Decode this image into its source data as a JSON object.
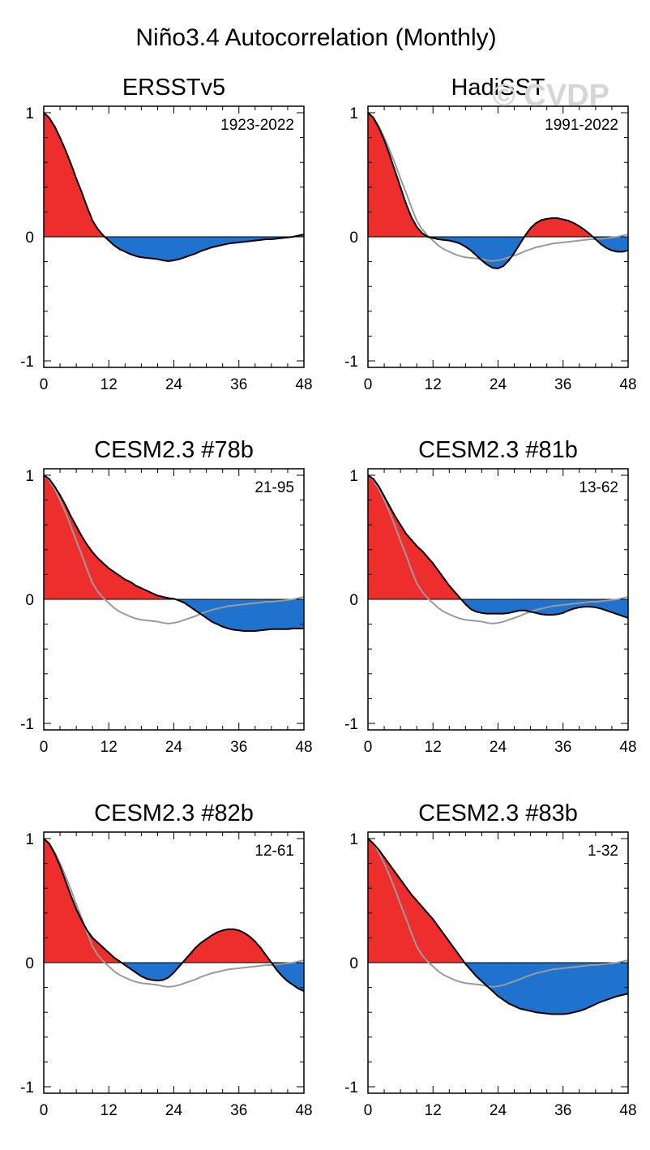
{
  "page_title": "Niño3.4 Autocorrelation (Monthly)",
  "watermark": "© CVDP",
  "colors": {
    "positive": "#ee2d2d",
    "negative": "#1f72cd",
    "line": "#000000",
    "reference": "#9a9a9a",
    "watermark": "#d6d6d6"
  },
  "chart_data": [
    {
      "type": "area",
      "title": "ERSSTv5",
      "period": "1923-2022",
      "xlim": [
        0,
        48
      ],
      "ylim": [
        -1,
        1
      ],
      "xticks": [
        0,
        12,
        24,
        36,
        48
      ],
      "yticks": [
        -1,
        0,
        1
      ],
      "x": [
        0,
        1,
        2,
        3,
        4,
        5,
        6,
        7,
        8,
        9,
        10,
        11,
        12,
        13,
        14,
        15,
        16,
        17,
        18,
        19,
        20,
        21,
        22,
        23,
        24,
        25,
        26,
        27,
        28,
        29,
        30,
        31,
        32,
        33,
        34,
        35,
        36,
        37,
        38,
        39,
        40,
        41,
        42,
        43,
        44,
        45,
        46,
        47,
        48
      ],
      "values": [
        1.0,
        0.96,
        0.89,
        0.8,
        0.7,
        0.59,
        0.47,
        0.36,
        0.24,
        0.13,
        0.06,
        0.01,
        -0.03,
        -0.07,
        -0.1,
        -0.12,
        -0.14,
        -0.155,
        -0.165,
        -0.17,
        -0.175,
        -0.18,
        -0.19,
        -0.195,
        -0.19,
        -0.18,
        -0.165,
        -0.15,
        -0.135,
        -0.115,
        -0.1,
        -0.085,
        -0.075,
        -0.065,
        -0.055,
        -0.05,
        -0.045,
        -0.04,
        -0.035,
        -0.03,
        -0.025,
        -0.02,
        -0.02,
        -0.015,
        -0.01,
        -0.005,
        0.0,
        0.01,
        0.02
      ],
      "reference": false
    },
    {
      "type": "area",
      "title": "HadiSST",
      "period": "1991-2022",
      "xlim": [
        0,
        48
      ],
      "ylim": [
        -1,
        1
      ],
      "xticks": [
        0,
        12,
        24,
        36,
        48
      ],
      "yticks": [
        -1,
        0,
        1
      ],
      "x": [
        0,
        1,
        2,
        3,
        4,
        5,
        6,
        7,
        8,
        9,
        10,
        11,
        12,
        13,
        14,
        15,
        16,
        17,
        18,
        19,
        20,
        21,
        22,
        23,
        24,
        25,
        26,
        27,
        28,
        29,
        30,
        31,
        32,
        33,
        34,
        35,
        36,
        37,
        38,
        39,
        40,
        41,
        42,
        43,
        44,
        45,
        46,
        47,
        48
      ],
      "values": [
        1.0,
        0.96,
        0.88,
        0.78,
        0.66,
        0.53,
        0.4,
        0.27,
        0.16,
        0.08,
        0.03,
        0.0,
        -0.01,
        -0.02,
        -0.025,
        -0.03,
        -0.04,
        -0.055,
        -0.08,
        -0.11,
        -0.15,
        -0.19,
        -0.225,
        -0.25,
        -0.255,
        -0.235,
        -0.19,
        -0.13,
        -0.06,
        0.01,
        0.07,
        0.11,
        0.135,
        0.145,
        0.15,
        0.15,
        0.14,
        0.13,
        0.11,
        0.085,
        0.055,
        0.02,
        -0.02,
        -0.06,
        -0.09,
        -0.11,
        -0.12,
        -0.12,
        -0.11
      ],
      "reference": true
    },
    {
      "type": "area",
      "title": "CESM2.3 #78b",
      "period": "21-95",
      "xlim": [
        0,
        48
      ],
      "ylim": [
        -1,
        1
      ],
      "xticks": [
        0,
        12,
        24,
        36,
        48
      ],
      "yticks": [
        -1,
        0,
        1
      ],
      "x": [
        0,
        1,
        2,
        3,
        4,
        5,
        6,
        7,
        8,
        9,
        10,
        11,
        12,
        13,
        14,
        15,
        16,
        17,
        18,
        19,
        20,
        21,
        22,
        23,
        24,
        25,
        26,
        27,
        28,
        29,
        30,
        31,
        32,
        33,
        34,
        35,
        36,
        37,
        38,
        39,
        40,
        41,
        42,
        43,
        44,
        45,
        46,
        47,
        48
      ],
      "values": [
        1.0,
        0.97,
        0.91,
        0.84,
        0.76,
        0.67,
        0.59,
        0.51,
        0.44,
        0.38,
        0.33,
        0.29,
        0.25,
        0.22,
        0.19,
        0.16,
        0.14,
        0.11,
        0.09,
        0.07,
        0.05,
        0.03,
        0.02,
        0.01,
        0.005,
        -0.01,
        -0.03,
        -0.06,
        -0.09,
        -0.12,
        -0.15,
        -0.18,
        -0.2,
        -0.22,
        -0.235,
        -0.245,
        -0.25,
        -0.255,
        -0.255,
        -0.255,
        -0.25,
        -0.245,
        -0.24,
        -0.24,
        -0.24,
        -0.24,
        -0.235,
        -0.235,
        -0.235
      ],
      "reference": true
    },
    {
      "type": "area",
      "title": "CESM2.3 #81b",
      "period": "13-62",
      "xlim": [
        0,
        48
      ],
      "ylim": [
        -1,
        1
      ],
      "xticks": [
        0,
        12,
        24,
        36,
        48
      ],
      "yticks": [
        -1,
        0,
        1
      ],
      "x": [
        0,
        1,
        2,
        3,
        4,
        5,
        6,
        7,
        8,
        9,
        10,
        11,
        12,
        13,
        14,
        15,
        16,
        17,
        18,
        19,
        20,
        21,
        22,
        23,
        24,
        25,
        26,
        27,
        28,
        29,
        30,
        31,
        32,
        33,
        34,
        35,
        36,
        37,
        38,
        39,
        40,
        41,
        42,
        43,
        44,
        45,
        46,
        47,
        48
      ],
      "values": [
        1.0,
        0.97,
        0.91,
        0.83,
        0.75,
        0.67,
        0.6,
        0.53,
        0.48,
        0.43,
        0.39,
        0.34,
        0.29,
        0.23,
        0.17,
        0.11,
        0.06,
        0.01,
        -0.04,
        -0.08,
        -0.1,
        -0.11,
        -0.115,
        -0.115,
        -0.115,
        -0.115,
        -0.11,
        -0.1,
        -0.09,
        -0.09,
        -0.1,
        -0.11,
        -0.12,
        -0.125,
        -0.125,
        -0.12,
        -0.11,
        -0.09,
        -0.075,
        -0.065,
        -0.06,
        -0.06,
        -0.065,
        -0.075,
        -0.09,
        -0.105,
        -0.12,
        -0.135,
        -0.15
      ],
      "reference": true
    },
    {
      "type": "area",
      "title": "CESM2.3 #82b",
      "period": "12-61",
      "xlim": [
        0,
        48
      ],
      "ylim": [
        -1,
        1
      ],
      "xticks": [
        0,
        12,
        24,
        36,
        48
      ],
      "yticks": [
        -1,
        0,
        1
      ],
      "x": [
        0,
        1,
        2,
        3,
        4,
        5,
        6,
        7,
        8,
        9,
        10,
        11,
        12,
        13,
        14,
        15,
        16,
        17,
        18,
        19,
        20,
        21,
        22,
        23,
        24,
        25,
        26,
        27,
        28,
        29,
        30,
        31,
        32,
        33,
        34,
        35,
        36,
        37,
        38,
        39,
        40,
        41,
        42,
        43,
        44,
        45,
        46,
        47,
        48
      ],
      "values": [
        1.0,
        0.96,
        0.88,
        0.78,
        0.66,
        0.54,
        0.43,
        0.34,
        0.26,
        0.2,
        0.16,
        0.12,
        0.08,
        0.04,
        0.01,
        -0.02,
        -0.05,
        -0.08,
        -0.11,
        -0.13,
        -0.14,
        -0.145,
        -0.14,
        -0.12,
        -0.08,
        -0.03,
        0.02,
        0.07,
        0.12,
        0.16,
        0.19,
        0.22,
        0.245,
        0.26,
        0.27,
        0.27,
        0.26,
        0.24,
        0.21,
        0.17,
        0.12,
        0.06,
        0.0,
        -0.06,
        -0.11,
        -0.15,
        -0.18,
        -0.21,
        -0.23
      ],
      "reference": true
    },
    {
      "type": "area",
      "title": "CESM2.3 #83b",
      "period": "1-32",
      "xlim": [
        0,
        48
      ],
      "ylim": [
        -1,
        1
      ],
      "xticks": [
        0,
        12,
        24,
        36,
        48
      ],
      "yticks": [
        -1,
        0,
        1
      ],
      "x": [
        0,
        1,
        2,
        3,
        4,
        5,
        6,
        7,
        8,
        9,
        10,
        11,
        12,
        13,
        14,
        15,
        16,
        17,
        18,
        19,
        20,
        21,
        22,
        23,
        24,
        25,
        26,
        27,
        28,
        29,
        30,
        31,
        32,
        33,
        34,
        35,
        36,
        37,
        38,
        39,
        40,
        41,
        42,
        43,
        44,
        45,
        46,
        47,
        48
      ],
      "values": [
        1.0,
        0.96,
        0.91,
        0.85,
        0.79,
        0.73,
        0.67,
        0.61,
        0.55,
        0.5,
        0.45,
        0.4,
        0.35,
        0.29,
        0.23,
        0.17,
        0.11,
        0.05,
        -0.01,
        -0.06,
        -0.11,
        -0.15,
        -0.19,
        -0.23,
        -0.27,
        -0.3,
        -0.33,
        -0.35,
        -0.37,
        -0.38,
        -0.39,
        -0.4,
        -0.405,
        -0.41,
        -0.415,
        -0.415,
        -0.415,
        -0.41,
        -0.4,
        -0.39,
        -0.375,
        -0.355,
        -0.335,
        -0.315,
        -0.3,
        -0.285,
        -0.27,
        -0.26,
        -0.25
      ],
      "reference": true
    }
  ],
  "reference_series": {
    "name": "ERSSTv5",
    "values": [
      1.0,
      0.96,
      0.89,
      0.8,
      0.7,
      0.59,
      0.47,
      0.36,
      0.24,
      0.13,
      0.06,
      0.01,
      -0.03,
      -0.07,
      -0.1,
      -0.12,
      -0.14,
      -0.155,
      -0.165,
      -0.17,
      -0.175,
      -0.18,
      -0.19,
      -0.195,
      -0.19,
      -0.18,
      -0.165,
      -0.15,
      -0.135,
      -0.115,
      -0.1,
      -0.085,
      -0.075,
      -0.065,
      -0.055,
      -0.05,
      -0.045,
      -0.04,
      -0.035,
      -0.03,
      -0.025,
      -0.02,
      -0.02,
      -0.015,
      -0.01,
      -0.005,
      0.0,
      0.01,
      0.02
    ]
  }
}
